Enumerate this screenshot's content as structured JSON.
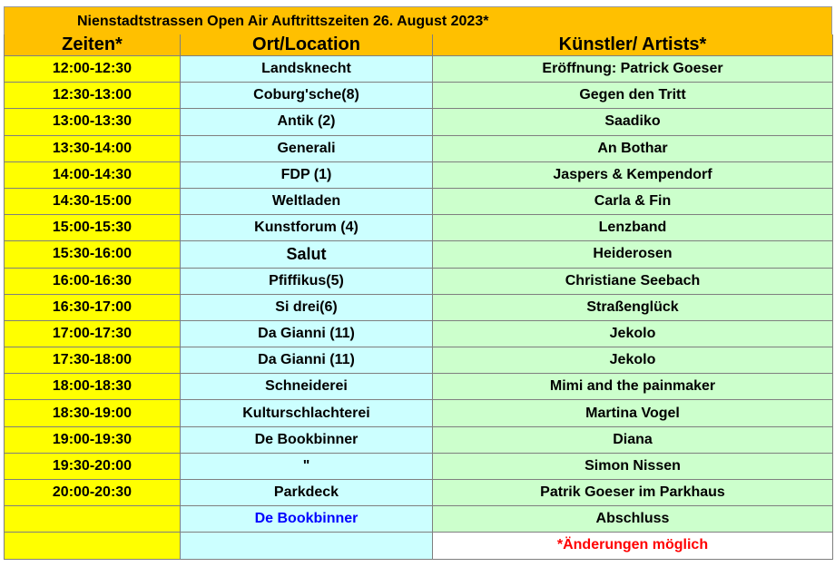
{
  "title": "Nienstadtstrassen Open Air  Auftrittszeiten 26. August 2023*",
  "headers": {
    "time": "Zeiten*",
    "location": "Ort/Location",
    "artist": "Künstler/ Artists*"
  },
  "rows": [
    {
      "time": "12:00-12:30",
      "location": "Landsknecht",
      "artist": "Eröffnung: Patrick Goeser"
    },
    {
      "time": "12:30-13:00",
      "location": "Coburg'sche(8)",
      "artist": "Gegen den Tritt"
    },
    {
      "time": "13:00-13:30",
      "location": "Antik (2)",
      "artist": "Saadiko"
    },
    {
      "time": "13:30-14:00",
      "location": "Generali",
      "artist": "An Bothar"
    },
    {
      "time": "14:00-14:30",
      "location": "FDP (1)",
      "artist": "Jaspers & Kempendorf"
    },
    {
      "time": "14:30-15:00",
      "location": "Weltladen",
      "artist": "Carla & Fin"
    },
    {
      "time": "15:00-15:30",
      "location": "Kunstforum (4)",
      "artist": "Lenzband"
    },
    {
      "time": "15:30-16:00",
      "location": "Salut",
      "artist": "Heiderosen"
    },
    {
      "time": "16:00-16:30",
      "location": "Pfiffikus(5)",
      "artist": "Christiane Seebach"
    },
    {
      "time": "16:30-17:00",
      "location": "Si drei(6)",
      "artist": "Straßenglück"
    },
    {
      "time": "17:00-17:30",
      "location": "Da Gianni (11)",
      "artist": "Jekolo"
    },
    {
      "time": "17:30-18:00",
      "location": "Da Gianni (11)",
      "artist": "Jekolo"
    },
    {
      "time": "18:00-18:30",
      "location": "Schneiderei",
      "artist": "Mimi and the painmaker"
    },
    {
      "time": "18:30-19:00",
      "location": "Kulturschlachterei",
      "artist": "Martina Vogel"
    },
    {
      "time": "19:00-19:30",
      "location": "De Bookbinner",
      "artist": "Diana"
    },
    {
      "time": "19:30-20:00",
      "location": "\"",
      "artist": "Simon Nissen"
    },
    {
      "time": "20:00-20:30",
      "location": "Parkdeck",
      "artist": "Patrik Goeser im Parkhaus"
    },
    {
      "time": "",
      "location": "De Bookbinner",
      "artist": "Abschluss"
    }
  ],
  "footnote": "*Änderungen möglich",
  "colors": {
    "header": "#ffc000",
    "time": "#ffff00",
    "location": "#ccffff",
    "artist": "#ccffcc",
    "footnote": "#ff0000",
    "blue_text": "#0000ff"
  }
}
